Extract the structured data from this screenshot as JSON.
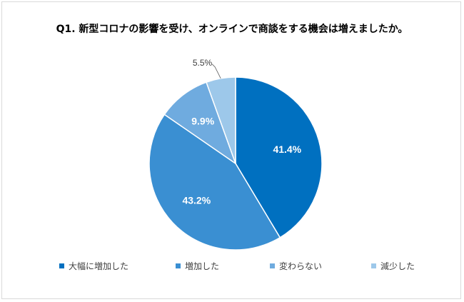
{
  "chart_data": {
    "type": "pie",
    "title": "Q1. 新型コロナの影響を受け、オンラインで商談をする機会は増えましたか。",
    "categories": [
      "大幅に増加した",
      "増加した",
      "変わらない",
      "減少した"
    ],
    "values": [
      41.4,
      43.2,
      9.9,
      5.5
    ],
    "value_labels": [
      "41.4%",
      "43.2%",
      "9.9%",
      "5.5%"
    ],
    "colors": [
      "#0070c0",
      "#3a8fd2",
      "#6fabdf",
      "#9dc8ea"
    ],
    "legend_position": "bottom",
    "start_angle": "12 o'clock, clockwise"
  }
}
